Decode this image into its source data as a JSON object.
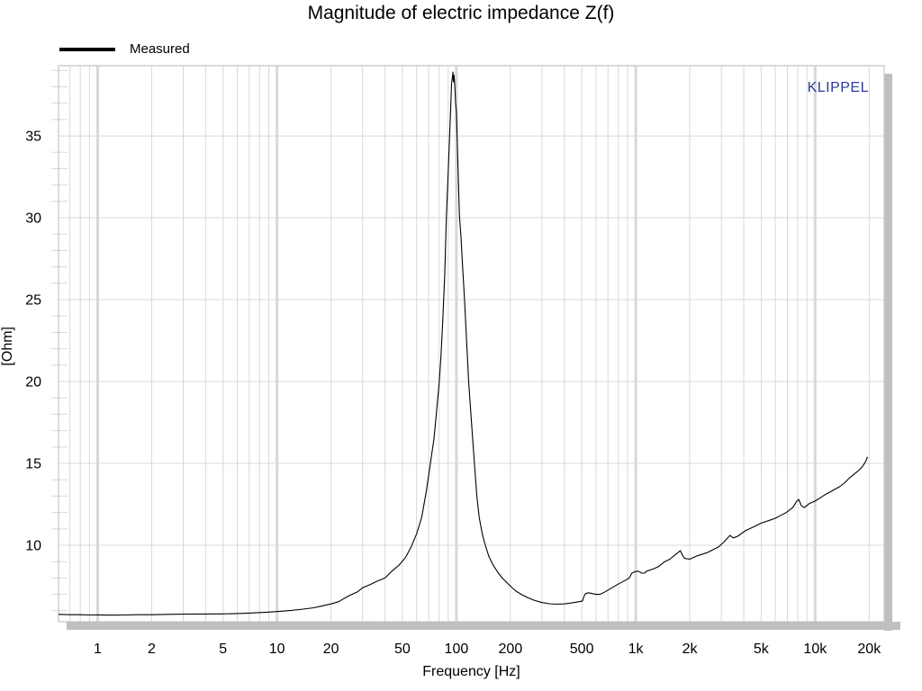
{
  "page": {
    "background": "#ffffff"
  },
  "header": {
    "title": "Magnitude of electric impedance Z(f)"
  },
  "watermark": {
    "text": "KLIPPEL",
    "color": "#2b3c97"
  },
  "colors": {
    "grid": "#d8d8d8",
    "frame": "#c4c4c4",
    "shadow": "#bfbfbf",
    "curve": "#000000",
    "text": "#000000"
  },
  "chart_data": {
    "type": "line",
    "title": "Magnitude of electric impedance Z(f)",
    "xlabel": "Frequency [Hz]",
    "ylabel": "[Ohm]",
    "x_scale": "log",
    "grid": true,
    "legend_position": "top-left-outside",
    "x_range": [
      0.605,
      24260
    ],
    "y_range": [
      5.33,
      39.29
    ],
    "x_major_gridlines": [
      1,
      10,
      100,
      1000,
      10000
    ],
    "x_ticks": [
      {
        "value": 1,
        "label": "1"
      },
      {
        "value": 2,
        "label": "2"
      },
      {
        "value": 5,
        "label": "5"
      },
      {
        "value": 10,
        "label": "10"
      },
      {
        "value": 20,
        "label": "20"
      },
      {
        "value": 50,
        "label": "50"
      },
      {
        "value": 100,
        "label": "100"
      },
      {
        "value": 200,
        "label": "200"
      },
      {
        "value": 500,
        "label": "500"
      },
      {
        "value": 1000,
        "label": "1k"
      },
      {
        "value": 2000,
        "label": "2k"
      },
      {
        "value": 5000,
        "label": "5k"
      },
      {
        "value": 10000,
        "label": "10k"
      },
      {
        "value": 20000,
        "label": "20k"
      }
    ],
    "y_ticks": [
      {
        "value": 10,
        "label": "10"
      },
      {
        "value": 15,
        "label": "15"
      },
      {
        "value": 20,
        "label": "20"
      },
      {
        "value": 25,
        "label": "25"
      },
      {
        "value": 30,
        "label": "30"
      },
      {
        "value": 35,
        "label": "35"
      }
    ],
    "y_minor_tick_step": 1,
    "legend": [
      {
        "name": "Measured",
        "color": "#000000"
      }
    ],
    "series": [
      {
        "name": "Measured",
        "color": "#000000",
        "x": [
          0.605,
          0.7,
          0.8,
          0.9,
          1.0,
          1.2,
          1.4,
          1.7,
          2.0,
          2.5,
          3.0,
          4.0,
          5.0,
          6.0,
          7.0,
          8.0,
          9.0,
          10,
          12,
          14,
          16,
          18,
          20,
          22,
          25,
          28,
          30,
          33,
          36,
          40,
          44,
          48,
          52,
          56,
          60,
          64,
          68,
          72,
          75,
          78,
          80,
          82,
          84,
          86,
          88,
          90,
          92,
          93,
          94,
          95,
          95.7,
          96.3,
          97,
          98,
          99,
          100,
          101,
          102,
          104,
          106,
          108,
          111,
          114,
          117,
          121,
          126,
          130,
          134,
          140,
          145,
          152,
          160,
          170,
          180,
          190,
          200,
          215,
          230,
          250,
          270,
          300,
          330,
          360,
          400,
          440,
          480,
          505,
          515,
          525,
          545,
          570,
          600,
          630,
          660,
          710,
          790,
          890,
          920,
          950,
          1000,
          1030,
          1080,
          1120,
          1150,
          1250,
          1340,
          1450,
          1550,
          1650,
          1720,
          1770,
          1820,
          1870,
          2000,
          2200,
          2500,
          2900,
          3100,
          3350,
          3500,
          3700,
          4100,
          4600,
          5000,
          5500,
          6000,
          6500,
          6900,
          7500,
          7900,
          8100,
          8400,
          8700,
          9300,
          10000,
          10700,
          11400,
          12100,
          12800,
          13800,
          14700,
          15500,
          16300,
          17200,
          18000,
          18600,
          19100,
          19600
        ],
        "y": [
          5.78,
          5.76,
          5.76,
          5.74,
          5.75,
          5.73,
          5.74,
          5.76,
          5.76,
          5.78,
          5.79,
          5.8,
          5.81,
          5.83,
          5.86,
          5.89,
          5.92,
          5.95,
          6.02,
          6.1,
          6.18,
          6.3,
          6.42,
          6.55,
          6.9,
          7.15,
          7.4,
          7.6,
          7.8,
          8.0,
          8.45,
          8.8,
          9.25,
          9.9,
          10.7,
          11.7,
          13.3,
          15.2,
          16.5,
          18.5,
          19.8,
          21.5,
          23.8,
          26.5,
          30.1,
          32.8,
          35.5,
          36.8,
          38.2,
          38.6,
          38.9,
          38.3,
          38.7,
          38.0,
          37.0,
          36.5,
          34.8,
          33.2,
          30.1,
          28.9,
          27.2,
          25.0,
          22.5,
          20.0,
          17.7,
          15.0,
          13.0,
          11.7,
          10.6,
          10.0,
          9.3,
          8.8,
          8.35,
          8.0,
          7.75,
          7.5,
          7.2,
          7.0,
          6.8,
          6.65,
          6.5,
          6.43,
          6.4,
          6.42,
          6.48,
          6.55,
          6.6,
          6.9,
          7.05,
          7.1,
          7.05,
          7.0,
          7.0,
          7.1,
          7.3,
          7.6,
          7.9,
          8.0,
          8.3,
          8.4,
          8.42,
          8.3,
          8.3,
          8.42,
          8.55,
          8.7,
          9.0,
          9.15,
          9.4,
          9.55,
          9.67,
          9.4,
          9.2,
          9.15,
          9.35,
          9.55,
          9.9,
          10.2,
          10.6,
          10.45,
          10.55,
          10.9,
          11.15,
          11.35,
          11.5,
          11.65,
          11.85,
          12.0,
          12.3,
          12.7,
          12.8,
          12.4,
          12.3,
          12.55,
          12.7,
          12.9,
          13.1,
          13.25,
          13.4,
          13.6,
          13.85,
          14.1,
          14.3,
          14.5,
          14.7,
          14.9,
          15.1,
          15.4
        ]
      }
    ]
  }
}
